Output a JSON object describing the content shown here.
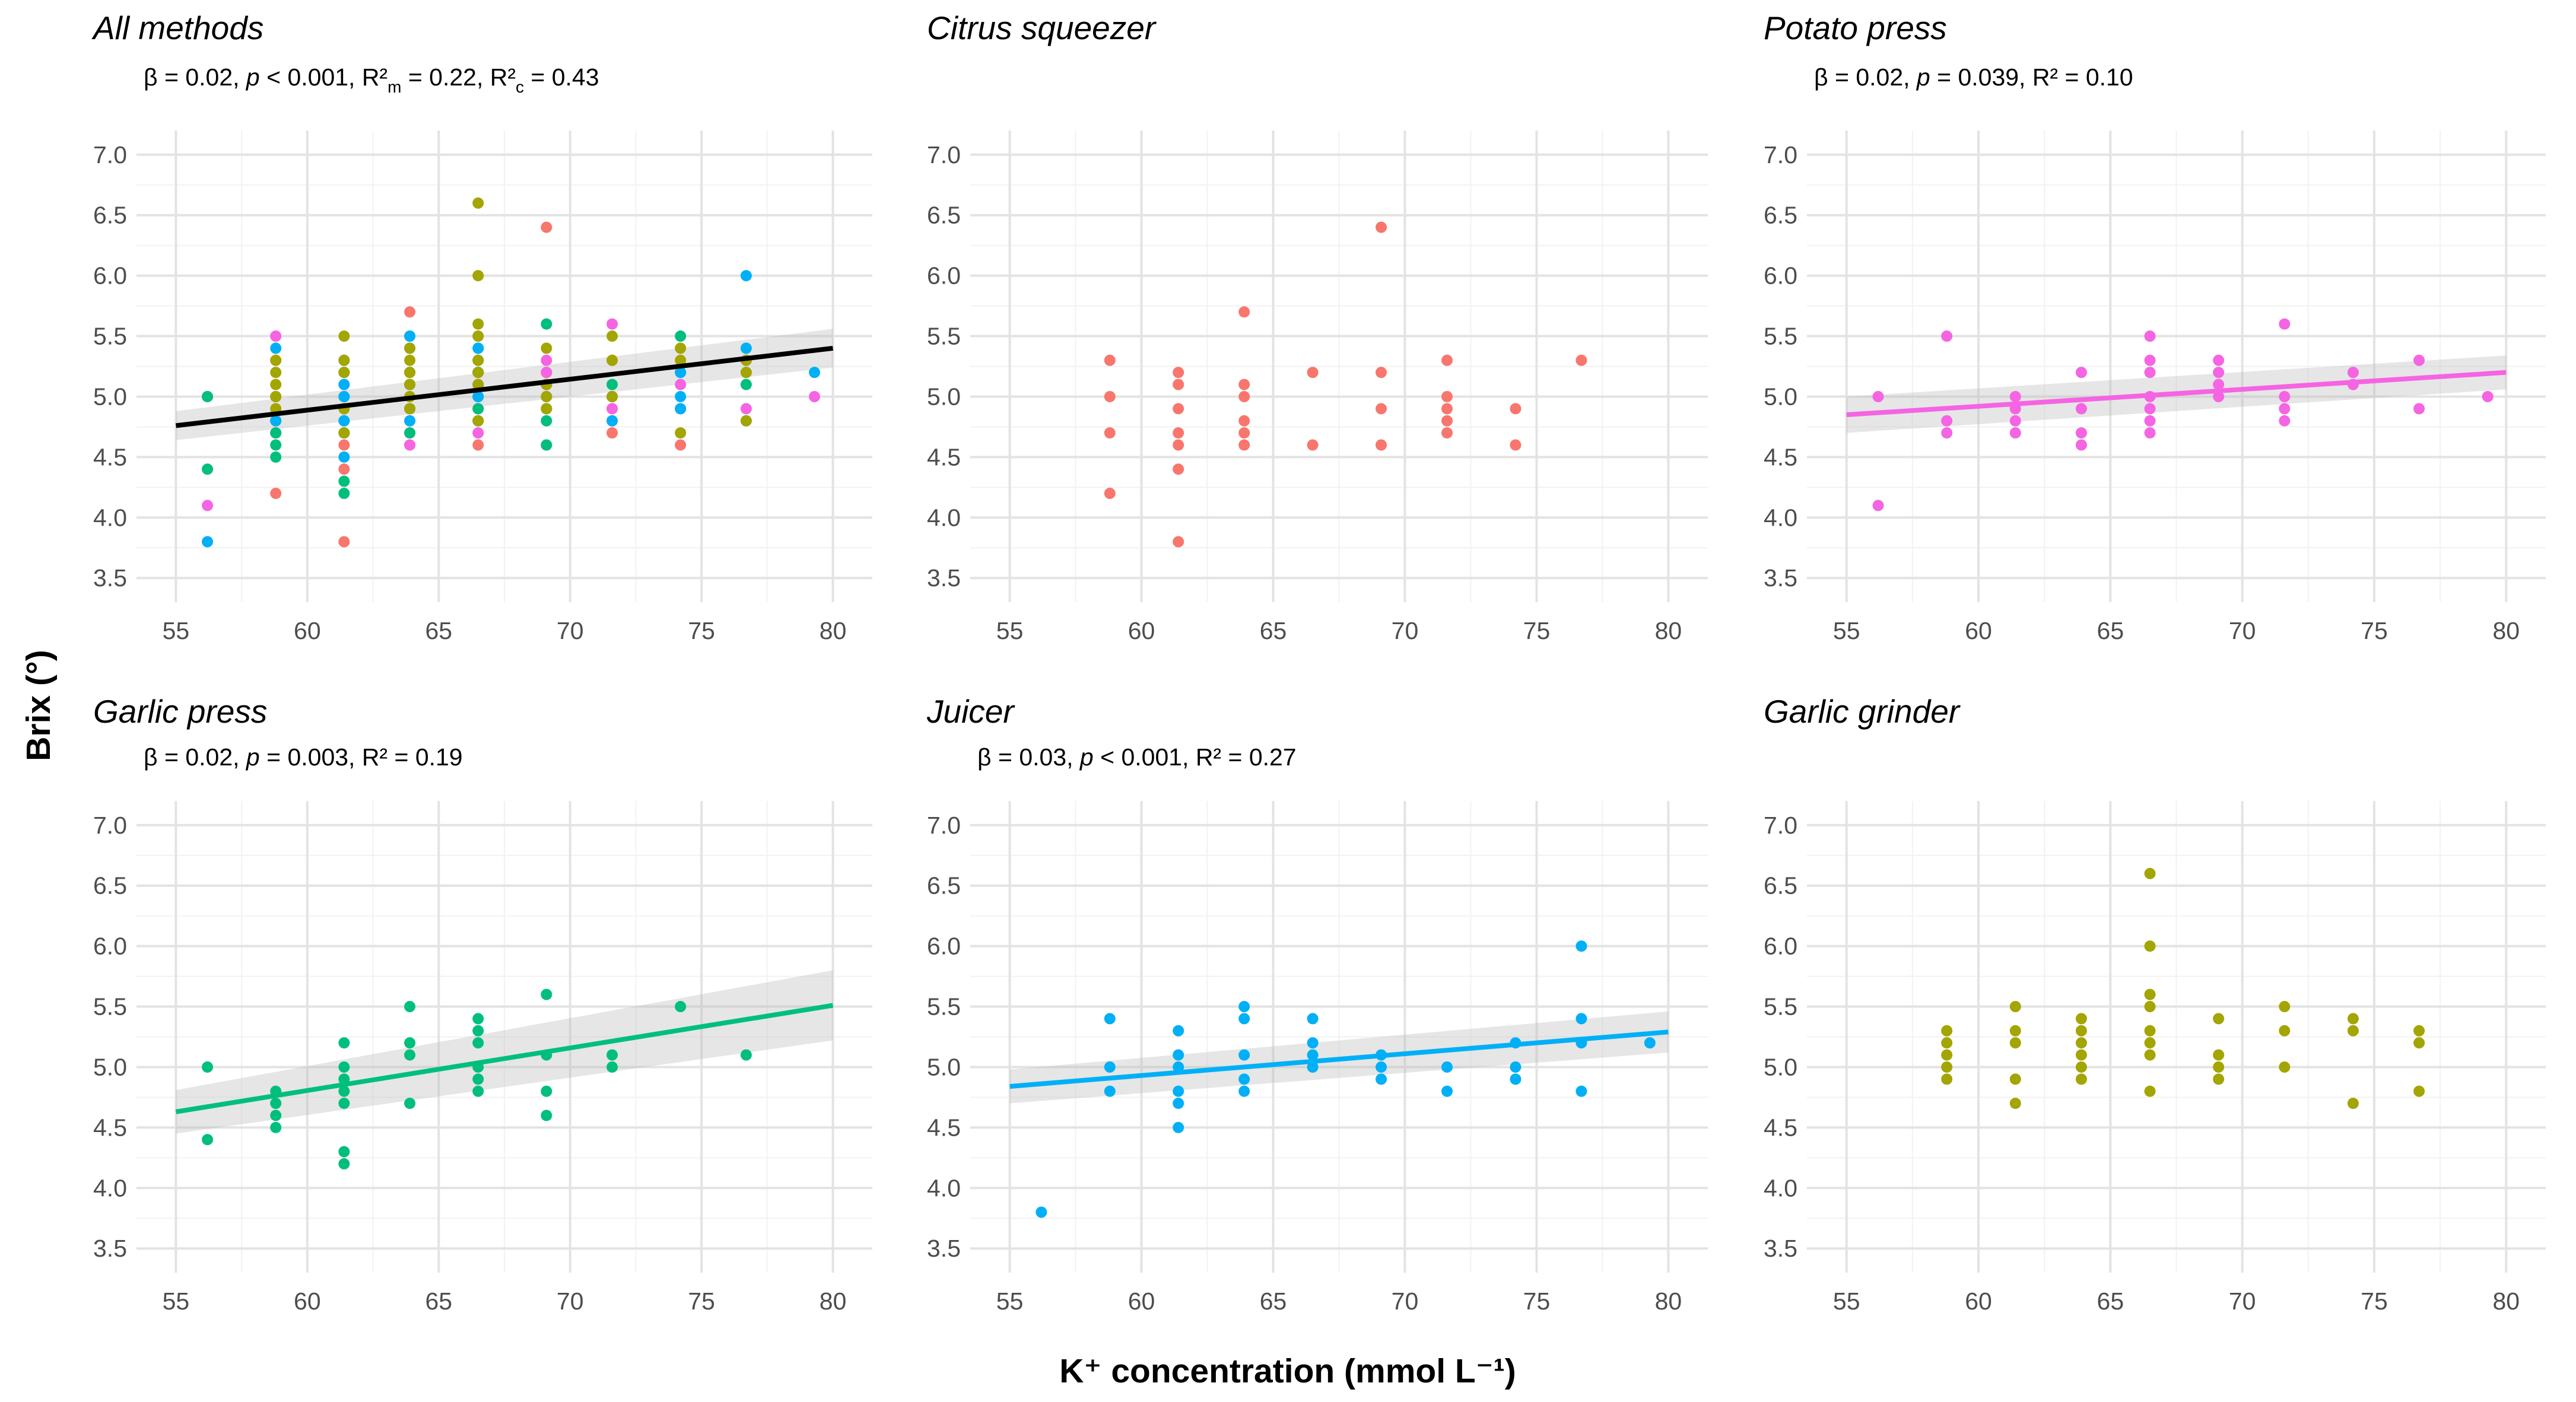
{
  "chart_data": {
    "type": "scatter",
    "xlabel": "K⁺ concentration (mmol L⁻¹)",
    "ylabel": "Brix (°)",
    "xlim": [
      53.5,
      81.5
    ],
    "ylim": [
      3.3,
      7.2
    ],
    "x_ticks": [
      55,
      60,
      65,
      70,
      75,
      80
    ],
    "y_ticks": [
      3.5,
      4.0,
      4.5,
      5.0,
      5.5,
      6.0,
      6.5,
      7.0
    ],
    "x_tick_labels": [
      "55",
      "60",
      "65",
      "70",
      "75",
      "80"
    ],
    "y_tick_labels": [
      "3.5",
      "4.0",
      "4.5",
      "5.0",
      "5.5",
      "6.0",
      "6.5",
      "7.0"
    ],
    "grid": true,
    "colors": {
      "citrus": "#f8766d",
      "potato": "#f564e3",
      "garlic_press": "#00bf7d",
      "juicer": "#00b0f6",
      "garlic_grinder": "#a3a500",
      "all_fit": "#000000"
    },
    "panels": [
      {
        "title": "All methods",
        "stats": {
          "beta": "β ",
          "p_pre": " = 0.02, ",
          "p": "p",
          "p_post": " < 0.001, R²",
          "sub_m": "m",
          "rm_val": " = 0.22, R²",
          "sub_c": "c",
          "rc_val": " = 0.43"
        },
        "combined": true,
        "fit": {
          "x": [
            55,
            80
          ],
          "y": [
            4.76,
            5.4
          ],
          "lo": [
            4.64,
            5.24
          ],
          "hi": [
            4.88,
            5.56
          ],
          "color": "#000000"
        }
      },
      {
        "title": "Citrus squeezer",
        "series": "citrus",
        "color": "#f8766d",
        "points": [
          [
            58.8,
            5.3
          ],
          [
            58.8,
            5.0
          ],
          [
            58.8,
            4.7
          ],
          [
            58.8,
            4.2
          ],
          [
            61.4,
            5.2
          ],
          [
            61.4,
            5.1
          ],
          [
            61.4,
            4.9
          ],
          [
            61.4,
            4.7
          ],
          [
            61.4,
            4.6
          ],
          [
            61.4,
            4.4
          ],
          [
            61.4,
            3.8
          ],
          [
            63.9,
            5.7
          ],
          [
            63.9,
            5.1
          ],
          [
            63.9,
            5.0
          ],
          [
            63.9,
            4.8
          ],
          [
            63.9,
            4.7
          ],
          [
            63.9,
            4.6
          ],
          [
            66.5,
            5.2
          ],
          [
            66.5,
            4.6
          ],
          [
            69.1,
            6.4
          ],
          [
            69.1,
            5.2
          ],
          [
            69.1,
            4.9
          ],
          [
            69.1,
            4.6
          ],
          [
            71.6,
            5.3
          ],
          [
            71.6,
            5.0
          ],
          [
            71.6,
            4.9
          ],
          [
            71.6,
            4.8
          ],
          [
            71.6,
            4.7
          ],
          [
            74.2,
            4.9
          ],
          [
            74.2,
            4.6
          ],
          [
            76.7,
            5.3
          ]
        ]
      },
      {
        "title": "Potato press",
        "series": "potato",
        "color": "#f564e3",
        "stats": {
          "beta": "β ",
          "p_pre": " = 0.02, ",
          "p": "p",
          "p_post": " = 0.039, R² = 0.10"
        },
        "fit": {
          "x": [
            55,
            80
          ],
          "y": [
            4.85,
            5.2
          ],
          "lo": [
            4.7,
            5.06
          ],
          "hi": [
            5.0,
            5.34
          ],
          "color": "#f564e3"
        },
        "points": [
          [
            56.2,
            5.0
          ],
          [
            56.2,
            4.1
          ],
          [
            58.8,
            5.5
          ],
          [
            58.8,
            4.8
          ],
          [
            58.8,
            4.7
          ],
          [
            61.4,
            5.0
          ],
          [
            61.4,
            4.9
          ],
          [
            61.4,
            4.8
          ],
          [
            61.4,
            4.7
          ],
          [
            63.9,
            5.2
          ],
          [
            63.9,
            4.9
          ],
          [
            63.9,
            4.7
          ],
          [
            63.9,
            4.6
          ],
          [
            66.5,
            5.5
          ],
          [
            66.5,
            5.3
          ],
          [
            66.5,
            5.2
          ],
          [
            66.5,
            5.0
          ],
          [
            66.5,
            4.9
          ],
          [
            66.5,
            4.8
          ],
          [
            66.5,
            4.7
          ],
          [
            69.1,
            5.3
          ],
          [
            69.1,
            5.2
          ],
          [
            69.1,
            5.1
          ],
          [
            69.1,
            5.0
          ],
          [
            71.6,
            5.6
          ],
          [
            71.6,
            5.0
          ],
          [
            71.6,
            4.9
          ],
          [
            71.6,
            4.8
          ],
          [
            74.2,
            5.2
          ],
          [
            74.2,
            5.1
          ],
          [
            76.7,
            5.3
          ],
          [
            76.7,
            4.9
          ],
          [
            79.3,
            5.0
          ]
        ]
      },
      {
        "title": "Garlic press",
        "series": "garlic_press",
        "color": "#00bf7d",
        "stats": {
          "beta": "β ",
          "p_pre": " = 0.02, ",
          "p": "p",
          "p_post": " = 0.003, R² = 0.19"
        },
        "fit": {
          "x": [
            55,
            80
          ],
          "y": [
            4.63,
            5.51
          ],
          "lo": [
            4.45,
            5.22
          ],
          "hi": [
            4.81,
            5.8
          ],
          "color": "#00bf7d"
        },
        "points": [
          [
            56.2,
            5.0
          ],
          [
            56.2,
            4.4
          ],
          [
            58.8,
            4.8
          ],
          [
            58.8,
            4.7
          ],
          [
            58.8,
            4.6
          ],
          [
            58.8,
            4.5
          ],
          [
            61.4,
            5.2
          ],
          [
            61.4,
            5.0
          ],
          [
            61.4,
            4.9
          ],
          [
            61.4,
            4.8
          ],
          [
            61.4,
            4.7
          ],
          [
            61.4,
            4.3
          ],
          [
            61.4,
            4.2
          ],
          [
            63.9,
            5.5
          ],
          [
            63.9,
            5.2
          ],
          [
            63.9,
            5.1
          ],
          [
            63.9,
            4.7
          ],
          [
            66.5,
            5.4
          ],
          [
            66.5,
            5.3
          ],
          [
            66.5,
            5.2
          ],
          [
            66.5,
            5.0
          ],
          [
            66.5,
            4.9
          ],
          [
            66.5,
            4.8
          ],
          [
            69.1,
            5.6
          ],
          [
            69.1,
            5.1
          ],
          [
            69.1,
            4.8
          ],
          [
            69.1,
            4.6
          ],
          [
            71.6,
            5.1
          ],
          [
            71.6,
            5.0
          ],
          [
            74.2,
            5.5
          ],
          [
            76.7,
            5.1
          ]
        ]
      },
      {
        "title": "Juicer",
        "series": "juicer",
        "color": "#00b0f6",
        "stats": {
          "beta": "β ",
          "p_pre": " = 0.03, ",
          "p": "p",
          "p_post": " < 0.001, R² = 0.27"
        },
        "fit": {
          "x": [
            55,
            80
          ],
          "y": [
            4.84,
            5.29
          ],
          "lo": [
            4.7,
            5.12
          ],
          "hi": [
            4.98,
            5.46
          ],
          "color": "#00b0f6"
        },
        "points": [
          [
            56.2,
            3.8
          ],
          [
            58.8,
            5.4
          ],
          [
            58.8,
            5.0
          ],
          [
            58.8,
            4.8
          ],
          [
            61.4,
            5.3
          ],
          [
            61.4,
            5.1
          ],
          [
            61.4,
            5.0
          ],
          [
            61.4,
            4.8
          ],
          [
            61.4,
            4.7
          ],
          [
            61.4,
            4.5
          ],
          [
            63.9,
            5.5
          ],
          [
            63.9,
            5.4
          ],
          [
            63.9,
            5.1
          ],
          [
            63.9,
            4.9
          ],
          [
            63.9,
            4.8
          ],
          [
            66.5,
            5.4
          ],
          [
            66.5,
            5.2
          ],
          [
            66.5,
            5.1
          ],
          [
            66.5,
            5.0
          ],
          [
            69.1,
            5.1
          ],
          [
            69.1,
            5.0
          ],
          [
            69.1,
            4.9
          ],
          [
            71.6,
            5.0
          ],
          [
            71.6,
            4.8
          ],
          [
            74.2,
            5.2
          ],
          [
            74.2,
            5.0
          ],
          [
            74.2,
            4.9
          ],
          [
            76.7,
            6.0
          ],
          [
            76.7,
            5.4
          ],
          [
            76.7,
            5.2
          ],
          [
            76.7,
            4.8
          ],
          [
            79.3,
            5.2
          ]
        ]
      },
      {
        "title": "Garlic grinder",
        "series": "garlic_grinder",
        "color": "#a3a500",
        "points": [
          [
            58.8,
            5.3
          ],
          [
            58.8,
            5.2
          ],
          [
            58.8,
            5.1
          ],
          [
            58.8,
            5.0
          ],
          [
            58.8,
            4.9
          ],
          [
            61.4,
            5.5
          ],
          [
            61.4,
            5.3
          ],
          [
            61.4,
            5.2
          ],
          [
            61.4,
            4.9
          ],
          [
            61.4,
            4.7
          ],
          [
            63.9,
            5.4
          ],
          [
            63.9,
            5.3
          ],
          [
            63.9,
            5.2
          ],
          [
            63.9,
            5.1
          ],
          [
            63.9,
            5.0
          ],
          [
            63.9,
            4.9
          ],
          [
            66.5,
            6.6
          ],
          [
            66.5,
            6.0
          ],
          [
            66.5,
            5.6
          ],
          [
            66.5,
            5.5
          ],
          [
            66.5,
            5.3
          ],
          [
            66.5,
            5.2
          ],
          [
            66.5,
            5.1
          ],
          [
            66.5,
            4.8
          ],
          [
            69.1,
            5.4
          ],
          [
            69.1,
            5.1
          ],
          [
            69.1,
            5.0
          ],
          [
            69.1,
            4.9
          ],
          [
            71.6,
            5.5
          ],
          [
            71.6,
            5.3
          ],
          [
            71.6,
            5.0
          ],
          [
            74.2,
            5.4
          ],
          [
            74.2,
            5.3
          ],
          [
            74.2,
            4.7
          ],
          [
            76.7,
            5.3
          ],
          [
            76.7,
            5.2
          ],
          [
            76.7,
            4.8
          ]
        ]
      }
    ]
  }
}
